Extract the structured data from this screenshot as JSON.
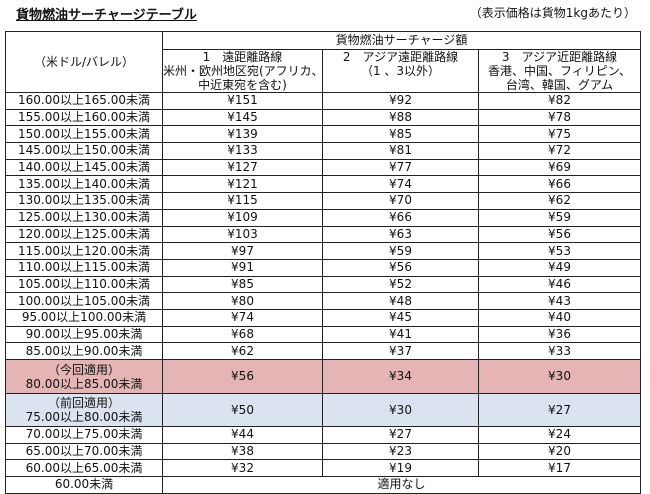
{
  "title": "貨物燃油サーチャージテーブル",
  "note": "（表示価格は貨物1kgあたり）",
  "header": {
    "unit": "（米ドル/バレル）",
    "group": "貨物燃油サーチャージ額",
    "columns": [
      [
        "1　遠距離路線",
        "米州・欧州地区宛(アフリカ、",
        "中近東宛を含む)"
      ],
      [
        "2　アジア遠距離路線",
        "（1 、3以外）"
      ],
      [
        "3　アジア近距離路線",
        "香港、中国、フィリピン、",
        "台湾、韓国、グアム"
      ]
    ]
  },
  "rows": [
    {
      "range": "160.00以上165.00未満",
      "values": [
        "¥151",
        "¥92",
        "¥82"
      ]
    },
    {
      "range": "155.00以上160.00未満",
      "values": [
        "¥145",
        "¥88",
        "¥78"
      ]
    },
    {
      "range": "150.00以上155.00未満",
      "values": [
        "¥139",
        "¥85",
        "¥75"
      ]
    },
    {
      "range": "145.00以上150.00未満",
      "values": [
        "¥133",
        "¥81",
        "¥72"
      ]
    },
    {
      "range": "140.00以上145.00未満",
      "values": [
        "¥127",
        "¥77",
        "¥69"
      ]
    },
    {
      "range": "135.00以上140.00未満",
      "values": [
        "¥121",
        "¥74",
        "¥66"
      ]
    },
    {
      "range": "130.00以上135.00未満",
      "values": [
        "¥115",
        "¥70",
        "¥62"
      ]
    },
    {
      "range": "125.00以上130.00未満",
      "values": [
        "¥109",
        "¥66",
        "¥59"
      ]
    },
    {
      "range": "120.00以上125.00未満",
      "values": [
        "¥103",
        "¥63",
        "¥56"
      ]
    },
    {
      "range": "115.00以上120.00未満",
      "values": [
        "¥97",
        "¥59",
        "¥53"
      ]
    },
    {
      "range": "110.00以上115.00未満",
      "values": [
        "¥91",
        "¥56",
        "¥49"
      ]
    },
    {
      "range": "105.00以上110.00未満",
      "values": [
        "¥85",
        "¥52",
        "¥46"
      ]
    },
    {
      "range": "100.00以上105.00未満",
      "values": [
        "¥80",
        "¥48",
        "¥43"
      ]
    },
    {
      "range": "95.00以上100.00未満",
      "values": [
        "¥74",
        "¥45",
        "¥40"
      ]
    },
    {
      "range": "90.00以上95.00未満",
      "values": [
        "¥68",
        "¥41",
        "¥36"
      ]
    },
    {
      "range": "85.00以上90.00未満",
      "values": [
        "¥62",
        "¥37",
        "¥33"
      ]
    },
    {
      "tag": "（今回適用）",
      "range": "80.00以上85.00未満",
      "values": [
        "¥56",
        "¥34",
        "¥30"
      ],
      "kind": "cur"
    },
    {
      "tag": "（前回適用）",
      "range": "75.00以上80.00未満",
      "values": [
        "¥50",
        "¥30",
        "¥27"
      ],
      "kind": "prev"
    },
    {
      "range": "70.00以上75.00未満",
      "values": [
        "¥44",
        "¥27",
        "¥24"
      ]
    },
    {
      "range": "65.00以上70.00未満",
      "values": [
        "¥38",
        "¥23",
        "¥20"
      ]
    },
    {
      "range": "60.00以上65.00未満",
      "values": [
        "¥32",
        "¥19",
        "¥17"
      ]
    }
  ],
  "last_row": {
    "range": "60.00未満",
    "value": "適用なし"
  },
  "colors": {
    "current": "#e5b5b6",
    "previous": "#dae3ef"
  }
}
